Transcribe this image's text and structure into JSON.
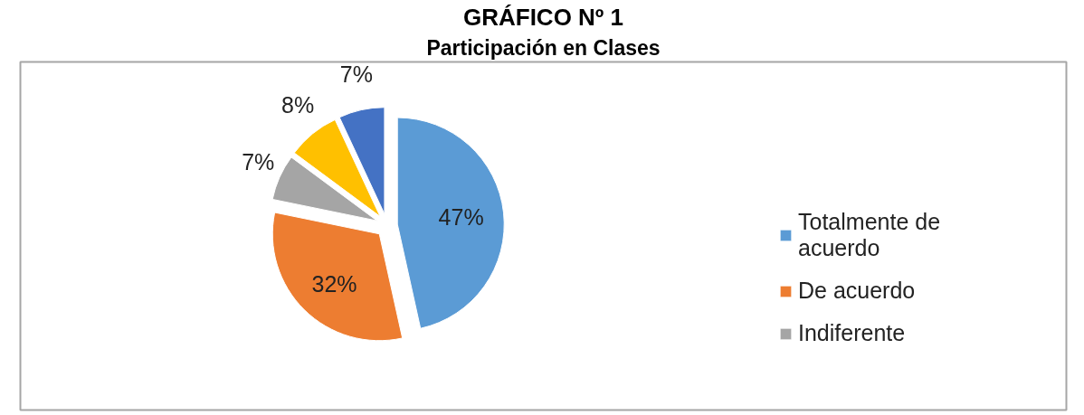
{
  "chart_data": {
    "type": "pie",
    "title": "GRÁFICO Nº 1",
    "subtitle": "Participación en Clases",
    "categories": [
      "Totalmente de acuerdo",
      "De acuerdo",
      "Indiferente",
      null,
      null
    ],
    "values": [
      47,
      32,
      7,
      8,
      7
    ],
    "colors": [
      "#5b9bd5",
      "#ed7d31",
      "#a5a5a5",
      "#ffc000",
      "#4472c4"
    ],
    "value_labels": [
      "47%",
      "32%",
      "7%",
      "8%",
      "7%"
    ],
    "legend": "right"
  }
}
